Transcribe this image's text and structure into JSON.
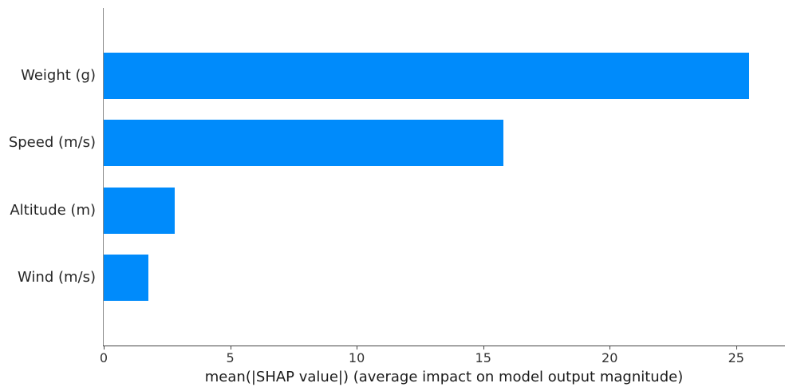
{
  "chart_data": {
    "type": "bar",
    "orientation": "horizontal",
    "title": "",
    "xlabel": "mean(|SHAP value|) (average impact on model output magnitude)",
    "ylabel": "",
    "categories": [
      "Weight (g)",
      "Speed (m/s)",
      "Altitude (m)",
      "Wind (m/s)"
    ],
    "values": [
      25.5,
      15.8,
      2.8,
      1.75
    ],
    "xticks": [
      0,
      5,
      10,
      15,
      20,
      25
    ],
    "xlim": [
      0,
      26.9
    ],
    "grid": false,
    "legend": "none",
    "bar_color": "#008bfb",
    "text_color": "#262626",
    "left_spine_color": "#8a8a8a",
    "bottom_spine_color": "#444444"
  }
}
